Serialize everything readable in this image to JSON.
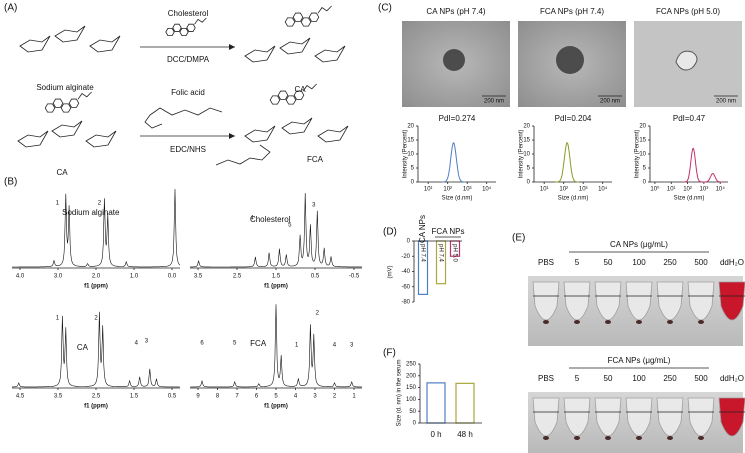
{
  "panel_a": {
    "label": "(A)",
    "reagent_1": "Cholesterol",
    "conditions_1": "DCC/DMPA",
    "reagent_2": "Folic acid",
    "conditions_2": "EDC/NHS",
    "compounds": [
      "Sodium alginate",
      "CA",
      "CA",
      "FCA"
    ]
  },
  "panel_b": {
    "label": "(B)",
    "spectra": [
      {
        "name": "Sodium alginate",
        "xlabel": "f1 (ppm)",
        "xticks": [
          "4.0",
          "3.0",
          "2.0",
          "1.0",
          "0.0"
        ],
        "peaks": [
          "1",
          "2"
        ]
      },
      {
        "name": "Cholesterol",
        "xlabel": "f1 (ppm)",
        "xticks": [
          "3.5",
          "2.5",
          "1.5",
          "0.5",
          "-0.5"
        ],
        "peaks": [
          "4",
          "5",
          "3"
        ]
      },
      {
        "name": "CA",
        "xlabel": "f1 (ppm)",
        "xticks": [
          "4.5",
          "3.5",
          "2.5",
          "1.5",
          "0.5"
        ],
        "peaks": [
          "1",
          "2",
          "4",
          "3"
        ]
      },
      {
        "name": "FCA",
        "xlabel": "f1 (ppm)",
        "xticks": [
          "9",
          "8",
          "7",
          "6",
          "5",
          "4",
          "3",
          "2",
          "1"
        ],
        "peaks": [
          "6",
          "5",
          "1",
          "2",
          "4",
          "3"
        ]
      }
    ]
  },
  "panel_c": {
    "label": "(C)",
    "images": [
      {
        "title": "CA NPs (pH 7.4)",
        "scale": "200 nm"
      },
      {
        "title": "FCA NPs (pH 7.4)",
        "scale": "200 nm"
      },
      {
        "title": "FCA NPs (pH 5.0)",
        "scale": "200 nm"
      }
    ],
    "dls": [
      {
        "pdi": "PdI=0.274",
        "ylabel": "Intensity (Percent)",
        "xlabel": "Size (d.nm)",
        "color": "#4f7fc0",
        "ylim": [
          0,
          20
        ],
        "yticks": [
          0,
          5,
          10,
          15,
          20
        ],
        "xlim": [
          3,
          30000
        ],
        "xticks": [
          {
            "value": 10,
            "label": "10¹"
          },
          {
            "value": 100,
            "label": "10²"
          },
          {
            "value": 1000,
            "label": "10³"
          },
          {
            "value": 10000,
            "label": "10⁴"
          }
        ],
        "peaks": [
          {
            "size": 200,
            "intensity": 14
          }
        ]
      },
      {
        "pdi": "PdI=0.204",
        "ylabel": "Intensity (Percent)",
        "xlabel": "Size (d.nm)",
        "color": "#8c9a22",
        "ylim": [
          0,
          20
        ],
        "yticks": [
          0,
          5,
          10,
          15,
          20
        ],
        "xlim": [
          3,
          30000
        ],
        "xticks": [
          {
            "value": 10,
            "label": "10¹"
          },
          {
            "value": 100,
            "label": "10²"
          },
          {
            "value": 1000,
            "label": "10³"
          },
          {
            "value": 10000,
            "label": "10⁴"
          }
        ],
        "peaks": [
          {
            "size": 150,
            "intensity": 14
          }
        ]
      },
      {
        "pdi": "PdI=0.47",
        "ylabel": "Intensity (Percent)",
        "xlabel": "Size (d.nm)",
        "color": "#c0306f",
        "ylim": [
          0,
          20
        ],
        "yticks": [
          0,
          5,
          10,
          15,
          20
        ],
        "xlim": [
          0.5,
          30000
        ],
        "xticks": [
          {
            "value": 1,
            "label": "10⁰"
          },
          {
            "value": 10,
            "label": "10¹"
          },
          {
            "value": 100,
            "label": "10²"
          },
          {
            "value": 1000,
            "label": "10³"
          },
          {
            "value": 10000,
            "label": "10⁴"
          }
        ],
        "peaks": [
          {
            "size": 220,
            "intensity": 12
          },
          {
            "size": 3500,
            "intensity": 3
          }
        ]
      }
    ]
  },
  "panel_d": {
    "label": "(D)",
    "type": "bar",
    "ylabel": "(mV)",
    "groups": [
      "CA NPs",
      "FCA NPs"
    ],
    "categories": [
      "pH 7.4",
      "pH 7.4",
      "pH 5.0"
    ],
    "values": [
      -70,
      -56,
      -20
    ],
    "colors": [
      "#4f7fc0",
      "#a8a83c",
      "#c0306f"
    ],
    "ylim": [
      -80,
      0
    ],
    "yticks": [
      0,
      -20,
      -40,
      -60,
      -80
    ]
  },
  "panel_e": {
    "label": "(E)",
    "rows": [
      {
        "title": "CA NPs (μg/mL)",
        "columns": [
          "PBS",
          "5",
          "50",
          "100",
          "250",
          "500",
          "ddH₂O"
        ]
      },
      {
        "title": "FCA NPs (μg/mL)",
        "columns": [
          "PBS",
          "5",
          "50",
          "100",
          "250",
          "500",
          "ddH₂O"
        ]
      }
    ]
  },
  "panel_f": {
    "label": "(F)",
    "type": "bar",
    "ylabel": "Size (d. nm) in the serum",
    "categories": [
      "0 h",
      "48 h"
    ],
    "values": [
      170,
      168
    ],
    "colors": [
      "#4f7fc0",
      "#a8a83c"
    ],
    "ylim": [
      0,
      250
    ],
    "yticks": [
      0,
      50,
      100,
      150,
      200,
      250
    ]
  }
}
